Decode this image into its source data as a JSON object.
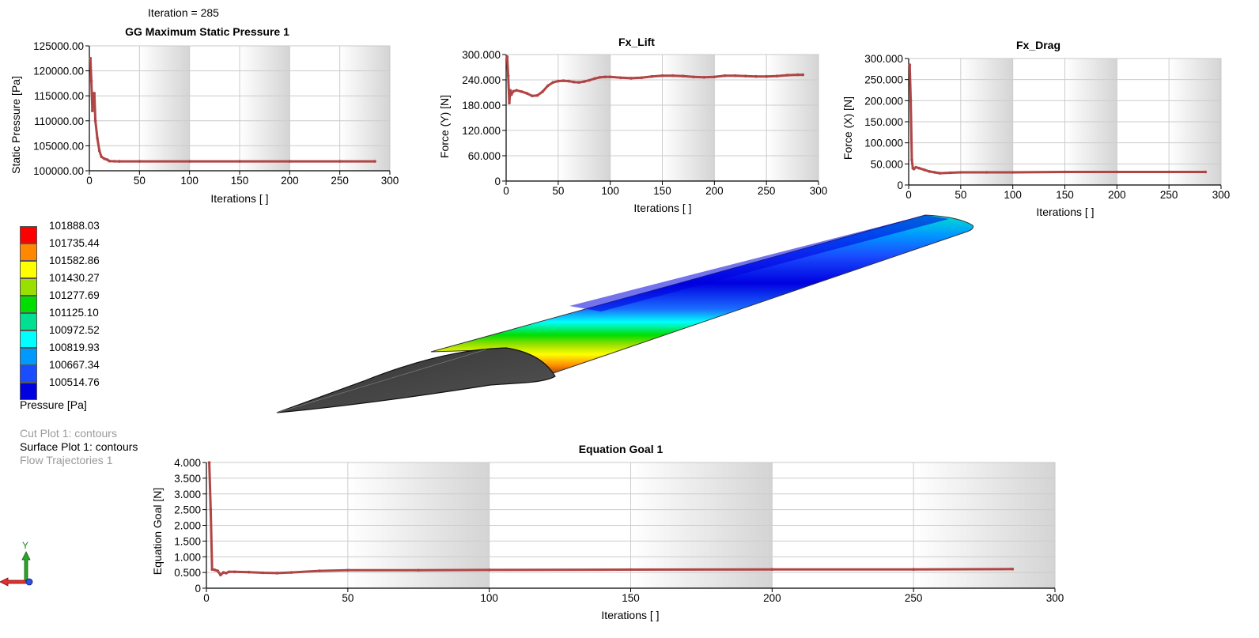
{
  "header": {
    "iteration_text": "Iteration = 285"
  },
  "colors": {
    "series": "#b04545",
    "axis": "#000000",
    "grid": "#cccccc",
    "band": "#d4d4d4"
  },
  "chart_data": [
    {
      "type": "line",
      "title": "GG Maximum Static Pressure 1",
      "xlabel": "Iterations [ ]",
      "ylabel": "Static Pressure [Pa]",
      "xlim": [
        0,
        300
      ],
      "ylim": [
        100000,
        125000
      ],
      "xticks": [
        "0",
        "50",
        "100",
        "150",
        "200",
        "250",
        "300"
      ],
      "yticks": [
        "100000.00",
        "105000.00",
        "110000.00",
        "115000.00",
        "120000.00",
        "125000.00"
      ],
      "grid": true,
      "series": [
        {
          "x": [
            1,
            2,
            3,
            4,
            5,
            6,
            8,
            10,
            12,
            15,
            18,
            20,
            25,
            30,
            50,
            100,
            150,
            200,
            250,
            285
          ],
          "y": [
            122500,
            118000,
            112000,
            115500,
            115500,
            110000,
            106500,
            104000,
            102800,
            102400,
            102200,
            101950,
            101900,
            101890,
            101888,
            101888,
            101888,
            101888,
            101888,
            101888
          ]
        }
      ]
    },
    {
      "type": "line",
      "title": "Fx_Lift",
      "xlabel": "Iterations [ ]",
      "ylabel": "Force (Y) [N]",
      "xlim": [
        0,
        300
      ],
      "ylim": [
        0,
        300
      ],
      "xticks": [
        "0",
        "50",
        "100",
        "150",
        "200",
        "250",
        "300"
      ],
      "yticks": [
        "0",
        "60.000",
        "120.000",
        "180.000",
        "240.000",
        "300.000"
      ],
      "grid": true,
      "series": [
        {
          "x": [
            1,
            2,
            3,
            4,
            5,
            7,
            10,
            15,
            20,
            25,
            30,
            35,
            40,
            45,
            50,
            55,
            60,
            65,
            70,
            75,
            80,
            85,
            90,
            95,
            100,
            110,
            120,
            130,
            140,
            150,
            160,
            170,
            180,
            190,
            200,
            210,
            220,
            230,
            240,
            250,
            260,
            270,
            280,
            285
          ],
          "y": [
            295,
            250,
            185,
            215,
            205,
            213,
            215,
            212,
            208,
            202,
            203,
            212,
            226,
            234,
            237,
            238,
            237,
            235,
            234,
            236,
            239,
            243,
            246,
            247,
            247,
            245,
            244,
            245,
            248,
            250,
            250,
            249,
            247,
            246,
            247,
            250,
            250,
            249,
            248,
            248,
            249,
            251,
            252,
            252
          ]
        }
      ]
    },
    {
      "type": "line",
      "title": "Fx_Drag",
      "xlabel": "Iterations [ ]",
      "ylabel": "Force (X) [N]",
      "xlim": [
        0,
        300
      ],
      "ylim": [
        0,
        300
      ],
      "xticks": [
        "0",
        "50",
        "100",
        "150",
        "200",
        "250",
        "300"
      ],
      "yticks": [
        "0",
        "50.000",
        "100.000",
        "150.000",
        "200.000",
        "250.000",
        "300.000"
      ],
      "grid": true,
      "series": [
        {
          "x": [
            1,
            2,
            3,
            4,
            5,
            7,
            10,
            15,
            20,
            25,
            30,
            40,
            50,
            75,
            100,
            150,
            200,
            250,
            285
          ],
          "y": [
            285,
            200,
            60,
            40,
            38,
            42,
            40,
            36,
            32,
            30,
            28,
            29,
            30,
            30,
            30,
            31,
            31,
            31,
            31
          ]
        }
      ]
    },
    {
      "type": "line",
      "title": "Equation Goal 1",
      "xlabel": "Iterations [ ]",
      "ylabel": "Equation Goal [N]",
      "xlim": [
        0,
        300
      ],
      "ylim": [
        0,
        4
      ],
      "xticks": [
        "0",
        "50",
        "100",
        "150",
        "200",
        "250",
        "300"
      ],
      "yticks": [
        "0",
        "0.500",
        "1.000",
        "1.500",
        "2.000",
        "2.500",
        "3.000",
        "3.500",
        "4.000"
      ],
      "grid": true,
      "series": [
        {
          "x": [
            1,
            1.5,
            2,
            3,
            4,
            5,
            6,
            7,
            8,
            10,
            15,
            20,
            25,
            30,
            40,
            50,
            75,
            100,
            150,
            200,
            250,
            285
          ],
          "y": [
            4.0,
            2.5,
            0.6,
            0.58,
            0.55,
            0.42,
            0.5,
            0.48,
            0.52,
            0.52,
            0.51,
            0.49,
            0.48,
            0.5,
            0.55,
            0.57,
            0.57,
            0.58,
            0.59,
            0.6,
            0.6,
            0.61
          ]
        }
      ]
    }
  ],
  "legend": {
    "title": "Pressure [Pa]",
    "items": [
      {
        "value": "101888.03",
        "color": "#ff0000"
      },
      {
        "value": "101735.44",
        "color": "#ff8800"
      },
      {
        "value": "101582.86",
        "color": "#ffff00"
      },
      {
        "value": "101430.27",
        "color": "#99e000"
      },
      {
        "value": "101277.69",
        "color": "#00dd00"
      },
      {
        "value": "101125.10",
        "color": "#00e090"
      },
      {
        "value": "100972.52",
        "color": "#00ffff"
      },
      {
        "value": "100819.93",
        "color": "#0099ff"
      },
      {
        "value": "100667.34",
        "color": "#1a4dff"
      },
      {
        "value": "100514.76",
        "color": "#0000e0"
      }
    ]
  },
  "plots": [
    {
      "label": "Cut Plot 1: contours",
      "active": false
    },
    {
      "label": "Surface Plot 1: contours",
      "active": true
    },
    {
      "label": "Flow Trajectories 1",
      "active": false
    }
  ],
  "triad": {
    "y_label": "Y"
  }
}
